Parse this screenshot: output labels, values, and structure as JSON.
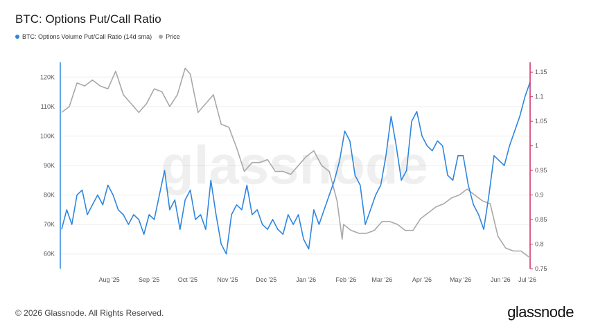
{
  "title": "BTC: Options Put/Call Ratio",
  "legend": [
    {
      "label": "BTC: Options Volume Put/Call Ratio (14d sma)",
      "color": "#2e86de"
    },
    {
      "label": "Price",
      "color": "#a8a8a8"
    }
  ],
  "watermark": "glassnode",
  "footer": "© 2026 Glassnode. All Rights Reserved.",
  "brand": "glassnode",
  "colors": {
    "ratio": "#2e86de",
    "price": "#a8a8a8",
    "left_axis": "#2e86de",
    "right_axis": "#d12c67"
  },
  "chart_data": {
    "type": "line",
    "x_ticks": [
      "Aug '25",
      "Sep '25",
      "Oct '25",
      "Nov '25",
      "Dec '25",
      "Jan '26",
      "Feb '26",
      "Mar '26",
      "Apr '26",
      "May '26",
      "Jun '26",
      "Jul '26"
    ],
    "left_axis": {
      "ticks": [
        "60K",
        "70K",
        "80K",
        "90K",
        "100K",
        "110K",
        "120K"
      ],
      "range": [
        55000,
        125000
      ]
    },
    "right_axis": {
      "ticks": [
        "0.75",
        "0.8",
        "0.85",
        "0.9",
        "0.95",
        "1",
        "1.05",
        "1.1",
        "1.15"
      ],
      "range": [
        0.75,
        1.17
      ]
    },
    "grid": "horizontal",
    "series": [
      {
        "name": "Price",
        "axis": "left",
        "x": [
          "2025-07-02",
          "2025-07-08",
          "2025-07-14",
          "2025-07-20",
          "2025-07-26",
          "2025-08-01",
          "2025-08-07",
          "2025-08-13",
          "2025-08-19",
          "2025-08-25",
          "2025-08-31",
          "2025-09-06",
          "2025-09-12",
          "2025-09-18",
          "2025-09-24",
          "2025-09-30",
          "2025-10-06",
          "2025-10-10",
          "2025-10-16",
          "2025-10-22",
          "2025-10-28",
          "2025-11-03",
          "2025-11-09",
          "2025-11-15",
          "2025-11-21",
          "2025-11-27",
          "2025-12-03",
          "2025-12-09",
          "2025-12-15",
          "2025-12-21",
          "2025-12-27",
          "2026-01-02",
          "2026-01-08",
          "2026-01-14",
          "2026-01-20",
          "2026-01-26",
          "2026-02-01",
          "2026-02-05",
          "2026-02-06",
          "2026-02-12",
          "2026-02-18",
          "2026-02-24",
          "2026-03-02",
          "2026-03-08",
          "2026-03-14",
          "2026-03-20",
          "2026-03-26",
          "2026-04-01",
          "2026-04-07",
          "2026-04-13",
          "2026-04-19",
          "2026-04-25",
          "2026-05-01",
          "2026-05-07",
          "2026-05-13",
          "2026-05-19",
          "2026-05-25",
          "2026-05-31",
          "2026-06-06",
          "2026-06-12",
          "2026-06-18",
          "2026-06-24",
          "2026-06-30"
        ],
        "values": [
          108000,
          110000,
          118000,
          117000,
          119000,
          117000,
          116000,
          122000,
          114000,
          111000,
          108000,
          111000,
          116000,
          115000,
          110000,
          114000,
          123000,
          121000,
          108000,
          111000,
          114000,
          104000,
          103000,
          96000,
          88000,
          91000,
          91000,
          92000,
          88000,
          88000,
          87000,
          90000,
          93000,
          95000,
          90000,
          88000,
          78000,
          65000,
          70000,
          68000,
          67000,
          67000,
          68000,
          71000,
          71000,
          70000,
          68000,
          68000,
          72000,
          74000,
          76000,
          77000,
          79000,
          80000,
          82000,
          80000,
          78000,
          77000,
          66000,
          62000,
          61000,
          61000,
          59000
        ]
      },
      {
        "name": "BTC: Options Volume Put/Call Ratio (14d sma)",
        "axis": "right",
        "x": [
          "2025-07-02",
          "2025-07-06",
          "2025-07-10",
          "2025-07-14",
          "2025-07-18",
          "2025-07-22",
          "2025-07-26",
          "2025-07-30",
          "2025-08-03",
          "2025-08-07",
          "2025-08-11",
          "2025-08-15",
          "2025-08-19",
          "2025-08-23",
          "2025-08-27",
          "2025-08-31",
          "2025-09-04",
          "2025-09-08",
          "2025-09-12",
          "2025-09-16",
          "2025-09-20",
          "2025-09-24",
          "2025-09-28",
          "2025-10-02",
          "2025-10-06",
          "2025-10-10",
          "2025-10-14",
          "2025-10-18",
          "2025-10-22",
          "2025-10-26",
          "2025-10-30",
          "2025-11-03",
          "2025-11-07",
          "2025-11-11",
          "2025-11-15",
          "2025-11-19",
          "2025-11-23",
          "2025-11-27",
          "2025-12-01",
          "2025-12-05",
          "2025-12-09",
          "2025-12-13",
          "2025-12-17",
          "2025-12-21",
          "2025-12-25",
          "2025-12-29",
          "2026-01-02",
          "2026-01-06",
          "2026-01-10",
          "2026-01-14",
          "2026-01-18",
          "2026-01-22",
          "2026-01-26",
          "2026-01-30",
          "2026-02-03",
          "2026-02-07",
          "2026-02-11",
          "2026-02-15",
          "2026-02-19",
          "2026-02-23",
          "2026-02-27",
          "2026-03-03",
          "2026-03-07",
          "2026-03-11",
          "2026-03-15",
          "2026-03-19",
          "2026-03-23",
          "2026-03-27",
          "2026-03-31",
          "2026-04-04",
          "2026-04-08",
          "2026-04-12",
          "2026-04-16",
          "2026-04-20",
          "2026-04-24",
          "2026-04-28",
          "2026-05-02",
          "2026-05-06",
          "2026-05-10",
          "2026-05-14",
          "2026-05-18",
          "2026-05-22",
          "2026-05-26",
          "2026-05-30",
          "2026-06-03",
          "2026-06-07",
          "2026-06-11",
          "2026-06-15",
          "2026-06-19",
          "2026-06-23",
          "2026-06-27",
          "2026-07-01"
        ],
        "values": [
          0.83,
          0.87,
          0.84,
          0.9,
          0.91,
          0.86,
          0.88,
          0.9,
          0.88,
          0.92,
          0.9,
          0.87,
          0.86,
          0.84,
          0.86,
          0.85,
          0.82,
          0.86,
          0.85,
          0.9,
          0.95,
          0.87,
          0.89,
          0.83,
          0.89,
          0.91,
          0.85,
          0.86,
          0.83,
          0.93,
          0.86,
          0.8,
          0.78,
          0.86,
          0.88,
          0.87,
          0.92,
          0.86,
          0.87,
          0.84,
          0.83,
          0.85,
          0.83,
          0.82,
          0.86,
          0.84,
          0.86,
          0.81,
          0.79,
          0.87,
          0.84,
          0.87,
          0.9,
          0.93,
          0.97,
          1.03,
          1.01,
          0.94,
          0.92,
          0.84,
          0.87,
          0.9,
          0.92,
          0.98,
          1.06,
          1.0,
          0.93,
          0.95,
          1.05,
          1.07,
          1.02,
          1.0,
          0.99,
          1.01,
          1.0,
          0.94,
          0.93,
          0.98,
          0.98,
          0.92,
          0.88,
          0.86,
          0.83,
          0.9,
          0.98,
          0.97,
          0.96,
          1.0,
          1.03,
          1.06,
          1.1,
          1.13
        ]
      }
    ]
  }
}
